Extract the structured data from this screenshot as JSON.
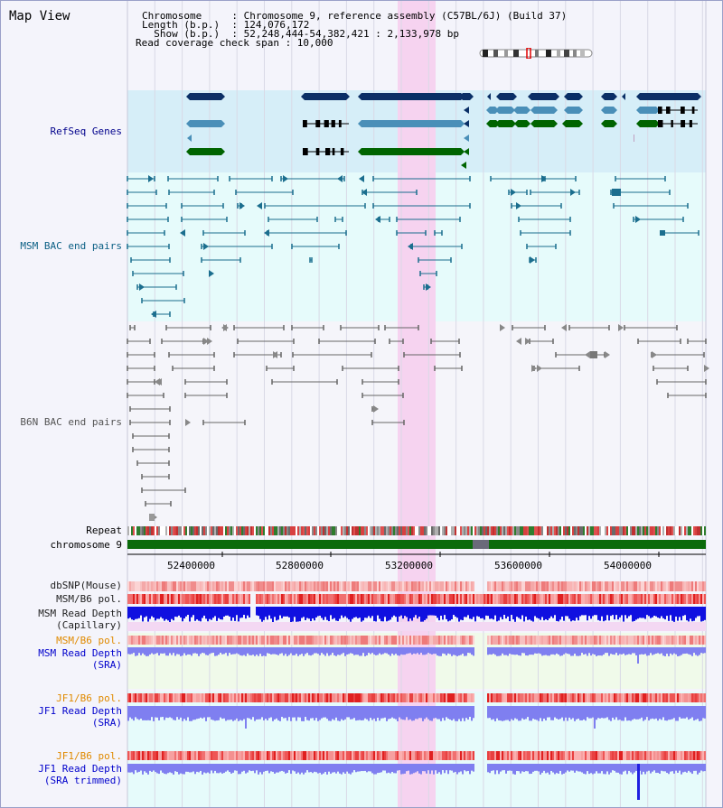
{
  "view": {
    "title": "Map View",
    "info_lines": [
      "Chromosome     : Chromosome 9, reference assembly (C57BL/6J) (Build 37)",
      "Length (b.p.)  : 124,076,172",
      "  Show (b.p.)  : 52,248,444-54,382,421 : 2,133,978 bp",
      "Read coverage check span : 10,000"
    ]
  },
  "tracks": {
    "refseq": "RefSeq Genes",
    "msm_bac": "MSM BAC end pairs",
    "b6n_bac": "B6N BAC end pairs",
    "repeat": "Repeat",
    "chromosome": "chromosome 9",
    "dbsnp": "dbSNP(Mouse)",
    "msm_pol1": "MSM/B6 pol.",
    "msm_depth_cap_1": "MSM Read Depth",
    "msm_depth_cap_2": "(Capillary)",
    "msm_pol2": "MSM/B6 pol.",
    "msm_depth_sra_1": "MSM Read Depth",
    "msm_depth_sra_2": "(SRA)",
    "jf1_pol1": "JF1/B6 pol.",
    "jf1_depth_1": "JF1 Read Depth",
    "jf1_depth_2": "(SRA)",
    "jf1_pol2": "JF1/B6 pol.",
    "jf1_trim_1": "JF1 Read Depth",
    "jf1_trim_2": "(SRA trimmed)"
  },
  "axis": {
    "ticks": [
      "52400000",
      "52800000",
      "53200000",
      "53600000",
      "54000000"
    ]
  },
  "colors": {
    "refseq_bg": "#d6eef8",
    "msm_bg": "#e6fbfb",
    "highlight": "#f6d3f0",
    "gene_navy": "#0a2f66",
    "gene_blue": "#4a8fb8",
    "gene_green": "#006400",
    "bac_teal": "#1b6e8e",
    "bac_gray": "#666666",
    "chrom_green": "#0b6b0b",
    "depth_blue": "#1010e0",
    "depth_light": "#7f7ff0"
  }
}
